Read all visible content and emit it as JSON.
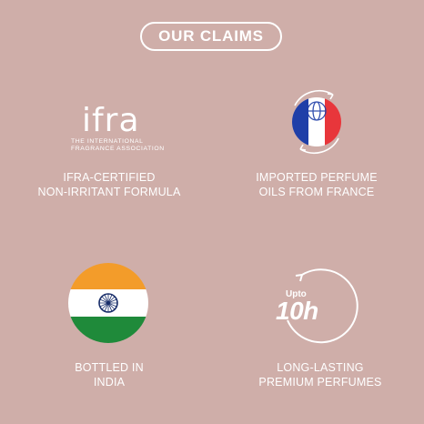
{
  "header": {
    "title": "OUR CLAIMS"
  },
  "ifra_logo": {
    "word": "ifra",
    "line1": "THE INTERNATIONAL",
    "line2": "FRAGRANCE ASSOCIATION"
  },
  "claims": [
    {
      "line1": "IFRA-CERTIFIED",
      "line2": "NON-IRRITANT FORMULA",
      "icon": "ifra-logo-icon"
    },
    {
      "line1": "IMPORTED PERFUME",
      "line2": "OILS FROM FRANCE",
      "icon": "france-flag-globe-icon"
    },
    {
      "line1": "BOTTLED IN",
      "line2": "INDIA",
      "icon": "india-flag-icon"
    },
    {
      "line1": "LONG-LASTING",
      "line2": "PREMIUM PERFUMES",
      "icon": "10h-duration-icon"
    }
  ],
  "duration_badge": {
    "upto": "Upto",
    "value": "10h"
  },
  "colors": {
    "background": "#cfaea9",
    "text": "#ffffff",
    "france_blue": "#1f3fa8",
    "france_red": "#e8363b",
    "india_saffron": "#f39c2a",
    "india_green": "#1f8a3a",
    "chakra_navy": "#1a2f6b"
  }
}
